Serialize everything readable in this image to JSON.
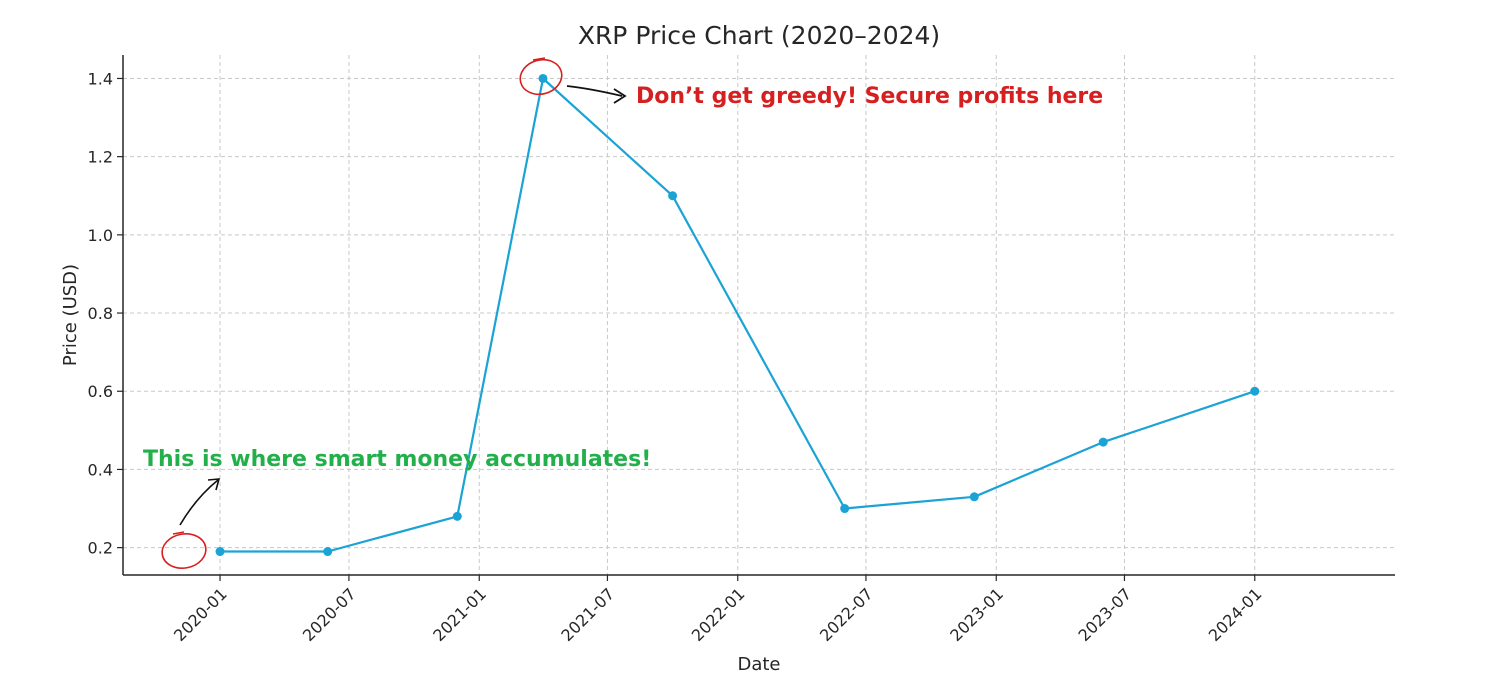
{
  "chart_data": {
    "type": "line",
    "title": "XRP Price Chart (2020–2024)",
    "xlabel": "Date",
    "ylabel": "Price (USD)",
    "x_tick_labels": [
      "2020-01",
      "2020-07",
      "2021-01",
      "2021-07",
      "2022-01",
      "2022-07",
      "2023-01",
      "2023-07",
      "2024-01"
    ],
    "x_tick_dates": [
      "2020-01-01",
      "2020-07-01",
      "2021-01-01",
      "2021-07-01",
      "2022-01-01",
      "2022-07-01",
      "2023-01-01",
      "2023-07-01",
      "2024-01-01"
    ],
    "xlim": [
      "2019-08-17",
      "2024-07-17"
    ],
    "y_ticks": [
      0.2,
      0.4,
      0.6,
      0.8,
      1.0,
      1.2,
      1.4
    ],
    "y_tick_labels": [
      "0.2",
      "0.4",
      "0.6",
      "0.8",
      "1.0",
      "1.2",
      "1.4"
    ],
    "ylim": [
      0.13,
      1.46
    ],
    "grid": true,
    "series": [
      {
        "color": "#1aa3d4",
        "points": [
          {
            "x": "2020-01-01",
            "y": 0.19
          },
          {
            "x": "2020-06-01",
            "y": 0.19
          },
          {
            "x": "2020-12-01",
            "y": 0.28
          },
          {
            "x": "2021-04-01",
            "y": 1.4
          },
          {
            "x": "2021-10-01",
            "y": 1.1
          },
          {
            "x": "2022-06-01",
            "y": 0.3
          },
          {
            "x": "2022-12-01",
            "y": 0.33
          },
          {
            "x": "2023-06-01",
            "y": 0.47
          },
          {
            "x": "2024-01-01",
            "y": 0.6
          }
        ]
      }
    ],
    "annotations": [
      {
        "text": "Don’t get greedy! Secure profits here",
        "color": "#d62020",
        "x": "2021-04-01",
        "y": 1.4
      },
      {
        "text": "This is where smart money accumulates!",
        "color": "#22b04b",
        "x": "2020-01-01",
        "y": 0.19
      }
    ]
  }
}
